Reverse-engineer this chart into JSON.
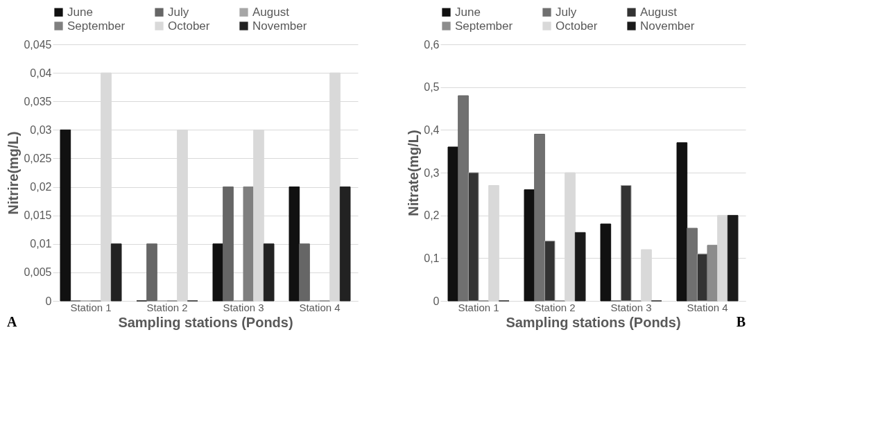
{
  "chart_data": [
    {
      "type": "bar",
      "categories": [
        "Station 1",
        "Station 2",
        "Station 3",
        "Station 4"
      ],
      "xlabel": "Sampling stations (Ponds)",
      "ylabel": "Nitrire(mg/L)",
      "ylim": [
        0,
        0.045
      ],
      "yticks": [
        {
          "value": 0,
          "label": "0"
        },
        {
          "value": 0.005,
          "label": "0,005"
        },
        {
          "value": 0.01,
          "label": "0,01"
        },
        {
          "value": 0.015,
          "label": "0,015"
        },
        {
          "value": 0.02,
          "label": "0,02"
        },
        {
          "value": 0.025,
          "label": "0,025"
        },
        {
          "value": 0.03,
          "label": "0,03"
        },
        {
          "value": 0.035,
          "label": "0,035"
        },
        {
          "value": 0.04,
          "label": "0,04"
        },
        {
          "value": 0.045,
          "label": "0,045"
        }
      ],
      "grid": "y",
      "legend": "top",
      "annotations": [
        "A"
      ],
      "series": [
        {
          "name": "June",
          "color": "#111111",
          "values": [
            0.03,
            0,
            0.01,
            0.02
          ]
        },
        {
          "name": "July",
          "color": "#666666",
          "values": [
            0,
            0.01,
            0.02,
            0.01
          ]
        },
        {
          "name": "August",
          "color": "#a6a6a6",
          "values": [
            0,
            0,
            0,
            0
          ]
        },
        {
          "name": "September",
          "color": "#7f7f7f",
          "values": [
            0,
            0,
            0.02,
            0
          ]
        },
        {
          "name": "October",
          "color": "#d9d9d9",
          "values": [
            0.04,
            0.03,
            0.03,
            0.04
          ]
        },
        {
          "name": "November",
          "color": "#222222",
          "values": [
            0.01,
            0,
            0.01,
            0.02
          ]
        }
      ]
    },
    {
      "type": "bar",
      "categories": [
        "Station 1",
        "Station 2",
        "Station 3",
        "Station 4"
      ],
      "xlabel": "Sampling stations (Ponds)",
      "ylabel": "Nitrate(mg/L)",
      "ylim": [
        0,
        0.6
      ],
      "yticks": [
        {
          "value": 0,
          "label": "0"
        },
        {
          "value": 0.1,
          "label": "0,1"
        },
        {
          "value": 0.2,
          "label": "0,2"
        },
        {
          "value": 0.3,
          "label": "0,3"
        },
        {
          "value": 0.4,
          "label": "0,4"
        },
        {
          "value": 0.5,
          "label": "0,5"
        },
        {
          "value": 0.6,
          "label": "0,6"
        }
      ],
      "grid": "y",
      "legend": "top",
      "annotations": [
        "B"
      ],
      "series": [
        {
          "name": "June",
          "color": "#111111",
          "values": [
            0.36,
            0.26,
            0.18,
            0.37
          ]
        },
        {
          "name": "July",
          "color": "#707070",
          "values": [
            0.48,
            0.39,
            0,
            0.17
          ]
        },
        {
          "name": "August",
          "color": "#333333",
          "values": [
            0.3,
            0.14,
            0.27,
            0.11
          ]
        },
        {
          "name": "September",
          "color": "#8c8c8c",
          "values": [
            0,
            0,
            0,
            0.13
          ]
        },
        {
          "name": "October",
          "color": "#d9d9d9",
          "values": [
            0.27,
            0.3,
            0.12,
            0.2
          ]
        },
        {
          "name": "November",
          "color": "#1a1a1a",
          "values": [
            0,
            0.16,
            0,
            0.2
          ]
        }
      ]
    }
  ]
}
